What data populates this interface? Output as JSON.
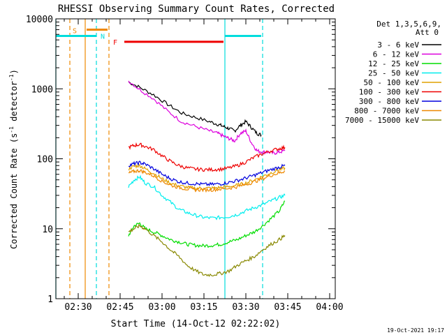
{
  "chart_data": {
    "type": "line",
    "title": "RHESSI Observing Summary Count Rates, Corrected",
    "xlabel": "Start Time (14-Oct-12 02:22:02)",
    "ylabel_main": "Corrected Count Rate (s",
    "ylabel_sup1": "-1",
    "ylabel_mid": " detector",
    "ylabel_sup2": "-1",
    "ylabel_end": ")",
    "x_unit": "minutes after 02:22:02",
    "xlim": [
      0,
      100
    ],
    "ylim": [
      1,
      10000
    ],
    "y_scale": "log",
    "x_ticks": [
      {
        "x": 8,
        "label": "02:30"
      },
      {
        "x": 23,
        "label": "02:45"
      },
      {
        "x": 38,
        "label": "03:00"
      },
      {
        "x": 53,
        "label": "03:15"
      },
      {
        "x": 68,
        "label": "03:30"
      },
      {
        "x": 83,
        "label": "03:45"
      },
      {
        "x": 98,
        "label": "04:00"
      }
    ],
    "y_ticks": [
      {
        "y": 1,
        "label": "1"
      },
      {
        "y": 10,
        "label": "10"
      },
      {
        "y": 100,
        "label": "100"
      },
      {
        "y": 1000,
        "label": "1000"
      },
      {
        "y": 10000,
        "label": "10000"
      }
    ],
    "legend_header": [
      "Det 1,3,5,6,9,",
      "Att 0"
    ],
    "legend_position": "right",
    "series": [
      {
        "name": "3 - 6 keV",
        "color": "#000000",
        "x": [
          26,
          30,
          35,
          40,
          45,
          50,
          55,
          58,
          60,
          62,
          64,
          66,
          68,
          70,
          72,
          73.5
        ],
        "y": [
          1250,
          1050,
          820,
          600,
          450,
          390,
          340,
          310,
          290,
          270,
          250,
          300,
          340,
          280,
          230,
          220
        ]
      },
      {
        "name": "6 - 12 keV",
        "color": "#dd00dd",
        "x": [
          26,
          30,
          35,
          40,
          45,
          50,
          55,
          58,
          60,
          62,
          64,
          66,
          68,
          70,
          72,
          74,
          76,
          78,
          80,
          82
        ],
        "y": [
          1300,
          980,
          720,
          480,
          340,
          290,
          250,
          230,
          210,
          195,
          180,
          230,
          250,
          170,
          130,
          125,
          125,
          120,
          125,
          130
        ]
      },
      {
        "name": "12 - 25 keV",
        "color": "#00dd00",
        "x": [
          26,
          28,
          30,
          32,
          35,
          38,
          41,
          44,
          47,
          50,
          53,
          56,
          59,
          62,
          65,
          68,
          71,
          74,
          77,
          80,
          82
        ],
        "y": [
          8,
          11,
          12,
          10,
          9,
          8,
          7,
          6.5,
          6,
          5.8,
          5.7,
          5.8,
          6,
          6.5,
          7,
          8,
          9,
          11,
          14,
          18,
          25
        ]
      },
      {
        "name": "25 - 50 keV",
        "color": "#00eeee",
        "x": [
          26,
          28,
          30,
          32,
          35,
          38,
          41,
          44,
          47,
          50,
          53,
          56,
          59,
          62,
          65,
          68,
          71,
          74,
          77,
          80,
          82
        ],
        "y": [
          40,
          50,
          55,
          45,
          40,
          30,
          24,
          19,
          17,
          15.5,
          14.5,
          14.2,
          14.5,
          15,
          16,
          18,
          20,
          22,
          25,
          28,
          30
        ]
      },
      {
        "name": "50 - 100 keV",
        "color": "#e0a000",
        "x": [
          26,
          28,
          30,
          32,
          35,
          38,
          41,
          44,
          47,
          50,
          53,
          56,
          59,
          62,
          65,
          68,
          71,
          74,
          77,
          80,
          82
        ],
        "y": [
          72,
          78,
          80,
          72,
          62,
          52,
          45,
          41,
          39,
          38,
          38,
          38,
          39,
          40,
          42,
          45,
          50,
          56,
          63,
          70,
          74
        ]
      },
      {
        "name": "100 - 300 keV",
        "color": "#ee0000",
        "x": [
          26,
          28,
          30,
          32,
          35,
          38,
          41,
          44,
          47,
          50,
          53,
          56,
          59,
          62,
          65,
          68,
          71,
          74,
          77,
          80,
          82
        ],
        "y": [
          145,
          155,
          160,
          150,
          135,
          110,
          92,
          80,
          74,
          71,
          70,
          70,
          71,
          74,
          80,
          90,
          105,
          118,
          130,
          140,
          145
        ]
      },
      {
        "name": "300 - 800 keV",
        "color": "#0000dd",
        "x": [
          26,
          28,
          30,
          32,
          35,
          38,
          41,
          44,
          47,
          50,
          53,
          56,
          59,
          62,
          65,
          68,
          71,
          74,
          77,
          80,
          82
        ],
        "y": [
          80,
          85,
          88,
          84,
          72,
          60,
          52,
          47,
          45,
          44,
          43,
          43,
          44,
          46,
          49,
          53,
          58,
          64,
          70,
          76,
          80
        ]
      },
      {
        "name": "800 - 7000 keV",
        "color": "#ee8800",
        "x": [
          26,
          28,
          30,
          32,
          35,
          38,
          41,
          44,
          47,
          50,
          53,
          56,
          59,
          62,
          65,
          68,
          71,
          74,
          77,
          80,
          82
        ],
        "y": [
          62,
          66,
          68,
          64,
          57,
          48,
          42,
          39,
          37,
          36,
          36,
          36,
          37,
          38,
          40,
          43,
          47,
          52,
          58,
          63,
          67
        ]
      },
      {
        "name": "7000 - 15000 keV",
        "color": "#888800",
        "x": [
          26,
          28,
          30,
          32,
          35,
          38,
          41,
          44,
          47,
          50,
          53,
          56,
          59,
          62,
          65,
          68,
          71,
          74,
          77,
          80,
          82
        ],
        "y": [
          9,
          10,
          11,
          10,
          8,
          6.5,
          5,
          4,
          3,
          2.5,
          2.2,
          2.2,
          2.3,
          2.5,
          3,
          3.5,
          4,
          5,
          6,
          7,
          8
        ]
      }
    ],
    "state_bars": [
      {
        "label": "S",
        "color": "#ee8800",
        "x0": 11,
        "x1": 18.5,
        "y": 7000
      },
      {
        "label": "N",
        "color": "#00dddd",
        "x0": 0,
        "x1": 14.5,
        "y": 5700
      },
      {
        "label": "N",
        "color": "#00dddd",
        "x0": 60.5,
        "x1": 73.5,
        "y": 5700
      },
      {
        "label": "F",
        "color": "#ee0000",
        "x0": 24.5,
        "x1": 60,
        "y": 4700
      }
    ],
    "vertical_lines": [
      {
        "x": 0,
        "color": "#00dddd",
        "style": "solid"
      },
      {
        "x": 5,
        "color": "#ee8800",
        "style": "dashed"
      },
      {
        "x": 10.5,
        "color": "#ee8800",
        "style": "solid"
      },
      {
        "x": 14.5,
        "color": "#00dddd",
        "style": "dashed"
      },
      {
        "x": 19,
        "color": "#ee8800",
        "style": "dashed"
      },
      {
        "x": 60.5,
        "color": "#00dddd",
        "style": "solid"
      },
      {
        "x": 74,
        "color": "#00dddd",
        "style": "dashed"
      }
    ],
    "footer_date": "19-Oct-2021 19:17"
  }
}
